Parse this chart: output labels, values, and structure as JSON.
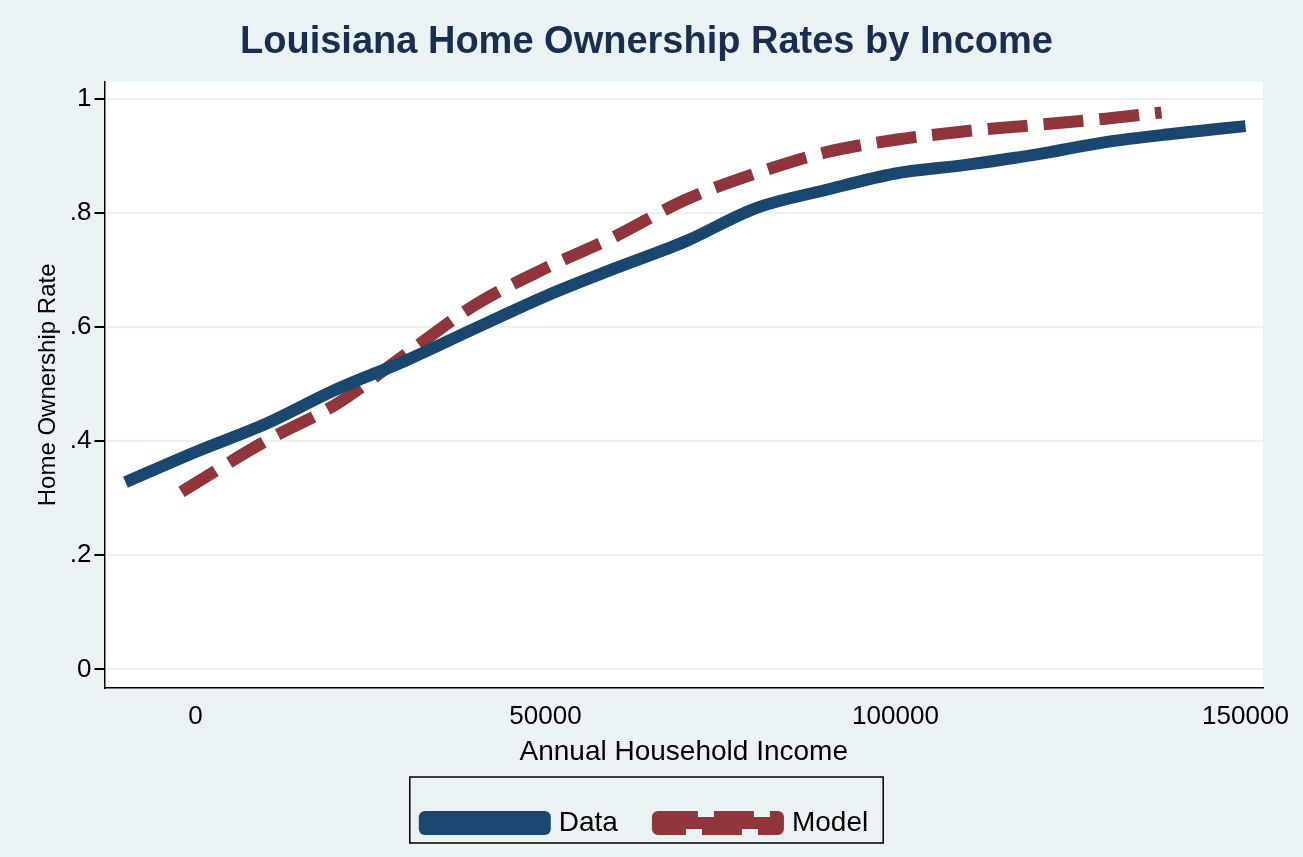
{
  "chart_data": {
    "type": "line",
    "title": "Louisiana Home Ownership Rates by Income",
    "xlabel": "Annual Household Income",
    "ylabel": "Home Ownership Rate",
    "xlim": [
      -13000,
      152500
    ],
    "ylim": [
      -0.033,
      1.03
    ],
    "xticks": [
      0,
      50000,
      100000,
      150000
    ],
    "yticks": [
      0,
      {
        "value": 0.2,
        "label": ".2"
      },
      {
        "value": 0.4,
        "label": ".4"
      },
      {
        "value": 0.6,
        "label": ".6"
      },
      {
        "value": 0.8,
        "label": ".8"
      },
      1
    ],
    "grid": "y",
    "legend": "bottom",
    "marker": "none",
    "series": [
      {
        "name": "Data",
        "color": "#1a476f",
        "line_style": "solid",
        "x": [
          -10000,
          0,
          10000,
          20000,
          30000,
          40000,
          50000,
          60000,
          70000,
          80000,
          90000,
          100000,
          110000,
          120000,
          130000,
          140000,
          150000
        ],
        "values": [
          0.328,
          0.381,
          0.43,
          0.49,
          0.541,
          0.598,
          0.654,
          0.703,
          0.75,
          0.808,
          0.84,
          0.869,
          0.884,
          0.902,
          0.924,
          0.939,
          0.952
        ]
      },
      {
        "name": "Model",
        "color": "#90353b",
        "line_style": "dashed",
        "x": [
          -2000,
          10000,
          20000,
          30000,
          40000,
          50000,
          60000,
          70000,
          80000,
          90000,
          100000,
          110000,
          120000,
          130000,
          138000
        ],
        "values": [
          0.311,
          0.4,
          0.464,
          0.552,
          0.639,
          0.703,
          0.759,
          0.823,
          0.869,
          0.906,
          0.928,
          0.943,
          0.954,
          0.965,
          0.976
        ]
      }
    ]
  }
}
